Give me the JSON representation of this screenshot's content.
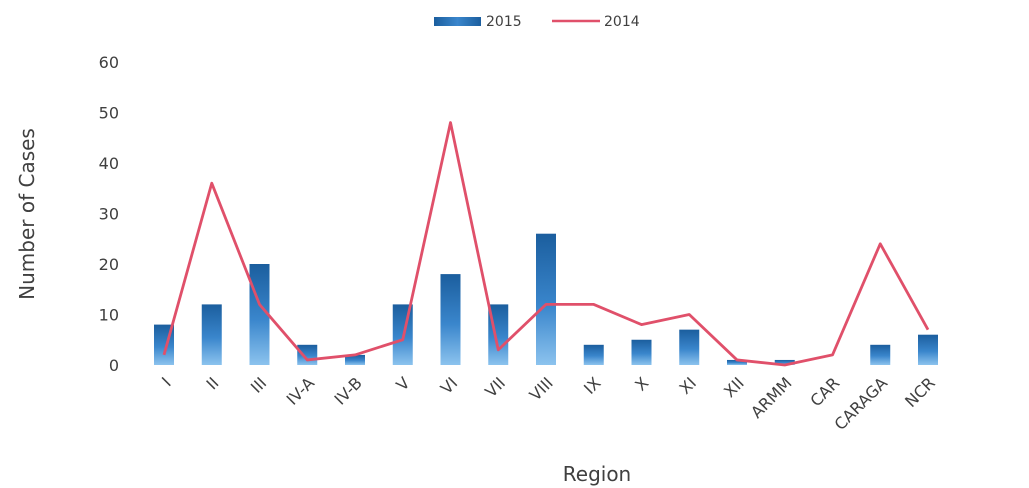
{
  "chart_data": {
    "type": "bar",
    "xlabel": "Region",
    "ylabel": "Number of Cases",
    "ylim": [
      0,
      60
    ],
    "yticks": [
      0,
      10,
      20,
      30,
      40,
      50,
      60
    ],
    "grid": false,
    "legend_position": "top-center",
    "categories": [
      "I",
      "II",
      "III",
      "IV-A",
      "IV-B",
      "V",
      "VI",
      "VII",
      "VIII",
      "IX",
      "X",
      "XI",
      "XII",
      "ARMM",
      "CAR",
      "CARAGA",
      "NCR"
    ],
    "series": [
      {
        "name": "2015",
        "type": "bar",
        "color": "#2e75b6",
        "values": [
          8,
          12,
          20,
          4,
          2,
          12,
          18,
          12,
          26,
          4,
          5,
          7,
          1,
          1,
          0,
          4,
          6
        ]
      },
      {
        "name": "2014",
        "type": "line",
        "color": "#e0506a",
        "values": [
          2,
          36,
          12,
          1,
          2,
          5,
          48,
          3,
          12,
          12,
          8,
          10,
          1,
          0,
          2,
          24,
          7
        ]
      }
    ]
  }
}
